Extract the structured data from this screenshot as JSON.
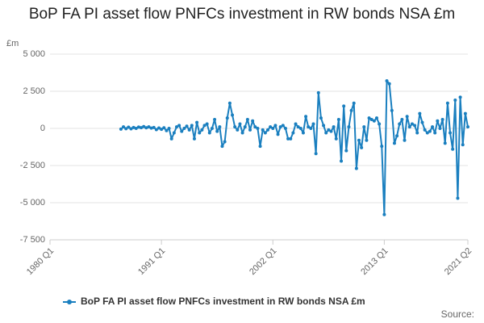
{
  "chart_data": {
    "type": "line",
    "title": "BoP FA PI asset flow PNFCs investment in RW bonds NSA £m",
    "y_label": "£m",
    "source": "Source:",
    "legend": "bottom",
    "grid": true,
    "xlim": [
      1980,
      2021.25
    ],
    "xticks": [
      {
        "value": 1980,
        "label": "1980 Q1"
      },
      {
        "value": 1991,
        "label": "1991 Q1"
      },
      {
        "value": 2002,
        "label": "2002 Q1"
      },
      {
        "value": 2013,
        "label": "2013 Q1"
      },
      {
        "value": 2021.25,
        "label": "2021 Q2"
      }
    ],
    "ylim": [
      -7500,
      5000
    ],
    "yticks": [
      {
        "value": -7500,
        "label": "-7 500"
      },
      {
        "value": -5000,
        "label": "-5 000"
      },
      {
        "value": -2500,
        "label": "-2 500"
      },
      0,
      {
        "value": 2500,
        "label": "2 500"
      },
      {
        "value": 5000,
        "label": "5 000"
      }
    ],
    "x": [
      1987,
      1987.25,
      1987.5,
      1987.75,
      1988,
      1988.25,
      1988.5,
      1988.75,
      1989,
      1989.25,
      1989.5,
      1989.75,
      1990,
      1990.25,
      1990.5,
      1990.75,
      1991,
      1991.25,
      1991.5,
      1991.75,
      1992,
      1992.25,
      1992.5,
      1992.75,
      1993,
      1993.25,
      1993.5,
      1993.75,
      1994,
      1994.25,
      1994.5,
      1994.75,
      1995,
      1995.25,
      1995.5,
      1995.75,
      1996,
      1996.25,
      1996.5,
      1996.75,
      1997,
      1997.25,
      1997.5,
      1997.75,
      1998,
      1998.25,
      1998.5,
      1998.75,
      1999,
      1999.25,
      1999.5,
      1999.75,
      2000,
      2000.25,
      2000.5,
      2000.75,
      2001,
      2001.25,
      2001.5,
      2001.75,
      2002,
      2002.25,
      2002.5,
      2002.75,
      2003,
      2003.25,
      2003.5,
      2003.75,
      2004,
      2004.25,
      2004.5,
      2004.75,
      2005,
      2005.25,
      2005.5,
      2005.75,
      2006,
      2006.25,
      2006.5,
      2006.75,
      2007,
      2007.25,
      2007.5,
      2007.75,
      2008,
      2008.25,
      2008.5,
      2008.75,
      2009,
      2009.25,
      2009.5,
      2009.75,
      2010,
      2010.25,
      2010.5,
      2010.75,
      2011,
      2011.25,
      2011.5,
      2011.75,
      2012,
      2012.25,
      2012.5,
      2012.75,
      2013,
      2013.25,
      2013.5,
      2013.75,
      2014,
      2014.25,
      2014.5,
      2014.75,
      2015,
      2015.25,
      2015.5,
      2015.75,
      2016,
      2016.25,
      2016.5,
      2016.75,
      2017,
      2017.25,
      2017.5,
      2017.75,
      2018,
      2018.25,
      2018.5,
      2018.75,
      2019,
      2019.25,
      2019.5,
      2019.75,
      2020,
      2020.25,
      2020.5,
      2020.75,
      2021,
      2021.25
    ],
    "series": [
      {
        "name": "BoP FA PI asset flow PNFCs investment in RW bonds NSA £m",
        "color": "#1a7fbf",
        "values": [
          -50,
          100,
          -20,
          80,
          -30,
          60,
          0,
          90,
          50,
          120,
          40,
          100,
          20,
          60,
          -80,
          30,
          -60,
          40,
          -150,
          0,
          -700,
          -300,
          100,
          200,
          -200,
          0,
          150,
          -100,
          200,
          -700,
          400,
          -300,
          -100,
          200,
          300,
          -300,
          0,
          600,
          -200,
          100,
          -1200,
          -900,
          700,
          1700,
          900,
          100,
          -100,
          300,
          -300,
          100,
          600,
          -100,
          500,
          100,
          0,
          -1200,
          -100,
          -300,
          -100,
          100,
          0,
          200,
          -400,
          100,
          200,
          0,
          -700,
          -700,
          -300,
          300,
          100,
          0,
          -300,
          800,
          100,
          0,
          300,
          -1700,
          2400,
          700,
          200,
          -300,
          -100,
          -200,
          100,
          -700,
          600,
          -2200,
          1500,
          -1500,
          100,
          1200,
          1700,
          -2700,
          -800,
          -1300,
          100,
          -800,
          700,
          600,
          500,
          700,
          300,
          -1200,
          -5800,
          3200,
          3000,
          1200,
          -1000,
          -500,
          300,
          600,
          -800,
          800,
          100,
          300,
          200,
          -300,
          1000,
          400,
          -100,
          -300,
          -200,
          100,
          -300,
          500,
          0,
          600,
          -1000,
          1700,
          -300,
          -1400,
          1900,
          -4700,
          2100,
          -1100,
          1000,
          100
        ]
      }
    ]
  }
}
